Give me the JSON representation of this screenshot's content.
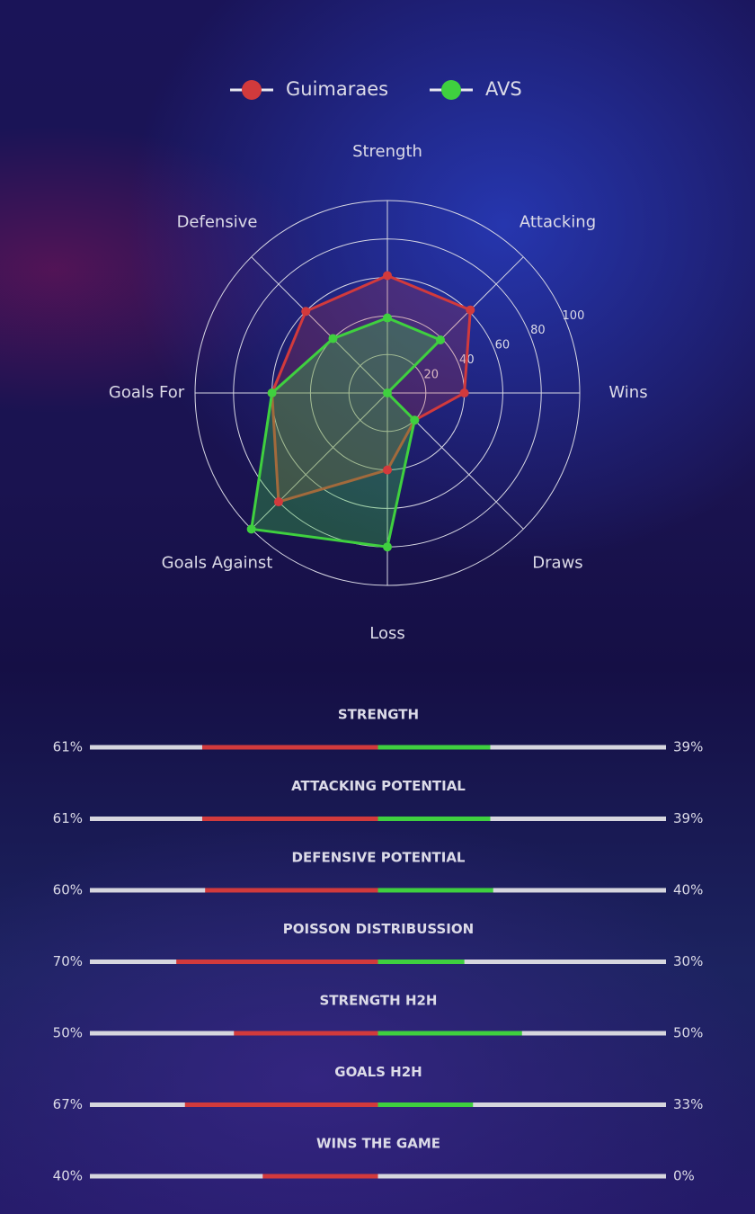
{
  "chart_data": [
    {
      "type": "radar",
      "legend_position": "top",
      "categories": [
        "Strength",
        "Attacking",
        "Wins",
        "Draws",
        "Loss",
        "Goals Against",
        "Goals For",
        "Defensive"
      ],
      "series": [
        {
          "name": "Guimaraes",
          "color": "#d23a3c",
          "values": [
            61,
            61,
            40,
            20,
            40,
            80,
            60,
            60
          ]
        },
        {
          "name": "AVS",
          "color": "#3fd03f",
          "values": [
            39,
            39,
            0,
            20,
            80,
            100,
            60,
            40
          ]
        }
      ],
      "rlim": [
        0,
        100
      ],
      "rticks": [
        20,
        40,
        60,
        80,
        100
      ],
      "grid": true
    },
    {
      "type": "comparison",
      "categories": [
        "STRENGTH",
        "ATTACKING POTENTIAL",
        "DEFENSIVE POTENTIAL",
        "POISSON DISTRIBUSSION",
        "STRENGTH H2H",
        "GOALS H2H",
        "WINS THE GAME"
      ],
      "series": [
        {
          "color": "#d23a3c",
          "values": [
            61,
            61,
            60,
            70,
            50,
            67,
            40
          ],
          "value_labels": [
            "61%",
            "61%",
            "60%",
            "70%",
            "50%",
            "67%",
            "40%"
          ]
        },
        {
          "color": "#3fd03f",
          "values": [
            39,
            39,
            40,
            30,
            50,
            33,
            0
          ],
          "value_labels": [
            "39%",
            "39%",
            "40%",
            "30%",
            "50%",
            "33%",
            "0%"
          ]
        }
      ],
      "xlim": [
        0,
        100
      ],
      "track_color": "#d6d6de"
    }
  ]
}
